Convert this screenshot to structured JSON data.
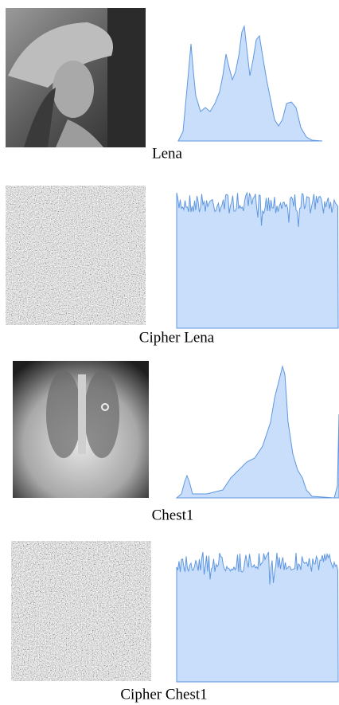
{
  "panels": [
    {
      "caption": "Lena"
    },
    {
      "caption": "Cipher Lena"
    },
    {
      "caption": "Chest1"
    },
    {
      "caption": "Cipher Chest1"
    }
  ]
}
